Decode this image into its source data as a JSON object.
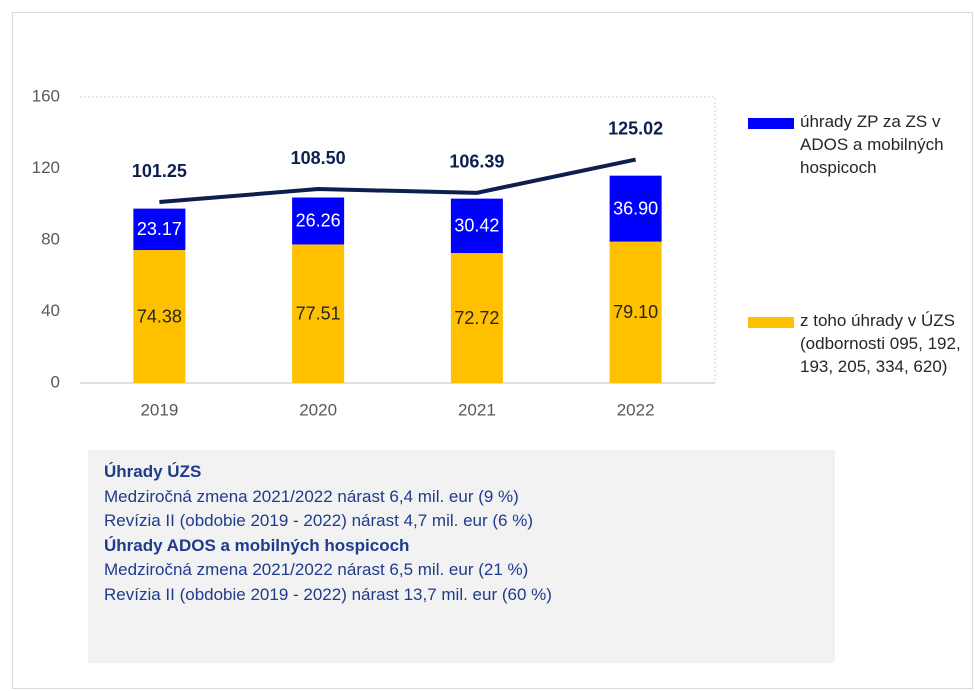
{
  "chart_data": {
    "type": "bar",
    "categories": [
      "2019",
      "2020",
      "2021",
      "2022"
    ],
    "series": [
      {
        "name": "z toho úhrady v ÚZS (odbornosti 095, 192, 193, 205, 334, 620)",
        "color": "#ffc000",
        "values": [
          74.38,
          77.51,
          72.72,
          79.1
        ],
        "value_labels": [
          "74.38",
          "77.51",
          "72.72",
          "79.10"
        ]
      },
      {
        "name": "úhrady ZP za ZS v ADOS a mobilných hospicoch",
        "color": "#0000ff",
        "values": [
          23.17,
          26.26,
          30.42,
          36.9
        ],
        "value_labels": [
          "23.17",
          "26.26",
          "30.42",
          "36.90"
        ]
      },
      {
        "type": "line",
        "color": "#0d1f4f",
        "values": [
          101.25,
          108.5,
          106.39,
          125.02
        ],
        "value_labels": [
          "101.25",
          "108.50",
          "106.39",
          "125.02"
        ]
      }
    ],
    "ylim": [
      0,
      160
    ],
    "yticks": [
      0,
      40,
      80,
      120,
      160
    ],
    "grid": false,
    "stacked": true,
    "legend": "right"
  },
  "note": [
    {
      "heading": "Úhrady ÚZS",
      "lines": [
        "Medziročná zmena 2021/2022 nárast 6,4 mil. eur (9 %)",
        "Revízia II (obdobie 2019 - 2022) nárast 4,7 mil. eur (6 %)"
      ]
    },
    {
      "heading": "Úhrady ADOS a mobilných hospicoch",
      "lines": [
        "Medziročná zmena 2021/2022 nárast 6,5 mil. eur (21 %)",
        "Revízia II (obdobie 2019 - 2022) nárast 13,7 mil. eur (60 %)"
      ]
    }
  ]
}
